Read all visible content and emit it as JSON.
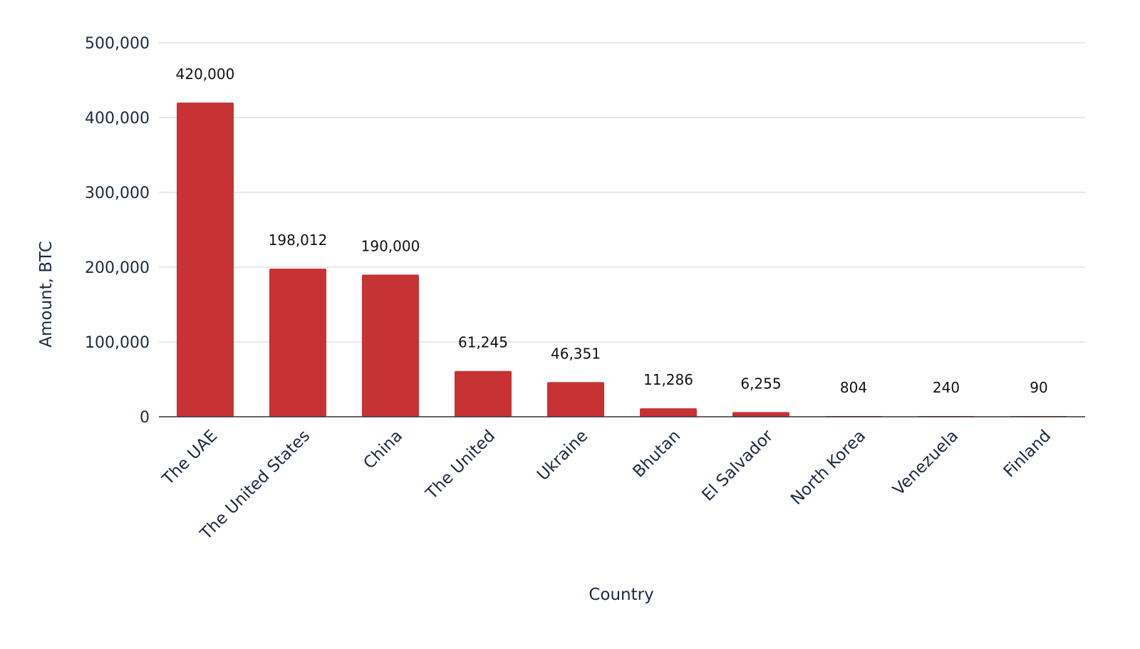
{
  "chart_data": {
    "type": "bar",
    "title": "",
    "xlabel": "Country",
    "ylabel": "Amount, BTC",
    "categories": [
      "The UAE",
      "The United States",
      "China",
      "The United",
      "Ukraine",
      "Bhutan",
      "El Salvador",
      "North Korea",
      "Venezuela",
      "Finland"
    ],
    "values": [
      420000,
      198012,
      190000,
      61245,
      46351,
      11286,
      6255,
      804,
      240,
      90
    ],
    "value_labels": [
      "420,000",
      "198,012",
      "190,000",
      "61,245",
      "46,351",
      "11,286",
      "6,255",
      "804",
      "240",
      "90"
    ],
    "yticks": [
      0,
      100000,
      200000,
      300000,
      400000,
      500000
    ],
    "ytick_labels": [
      "0",
      "100,000",
      "200,000",
      "300,000",
      "400,000",
      "500,000"
    ],
    "ylim": [
      0,
      500000
    ],
    "grid": true,
    "legend": "none",
    "bar_color": "#c73235"
  }
}
